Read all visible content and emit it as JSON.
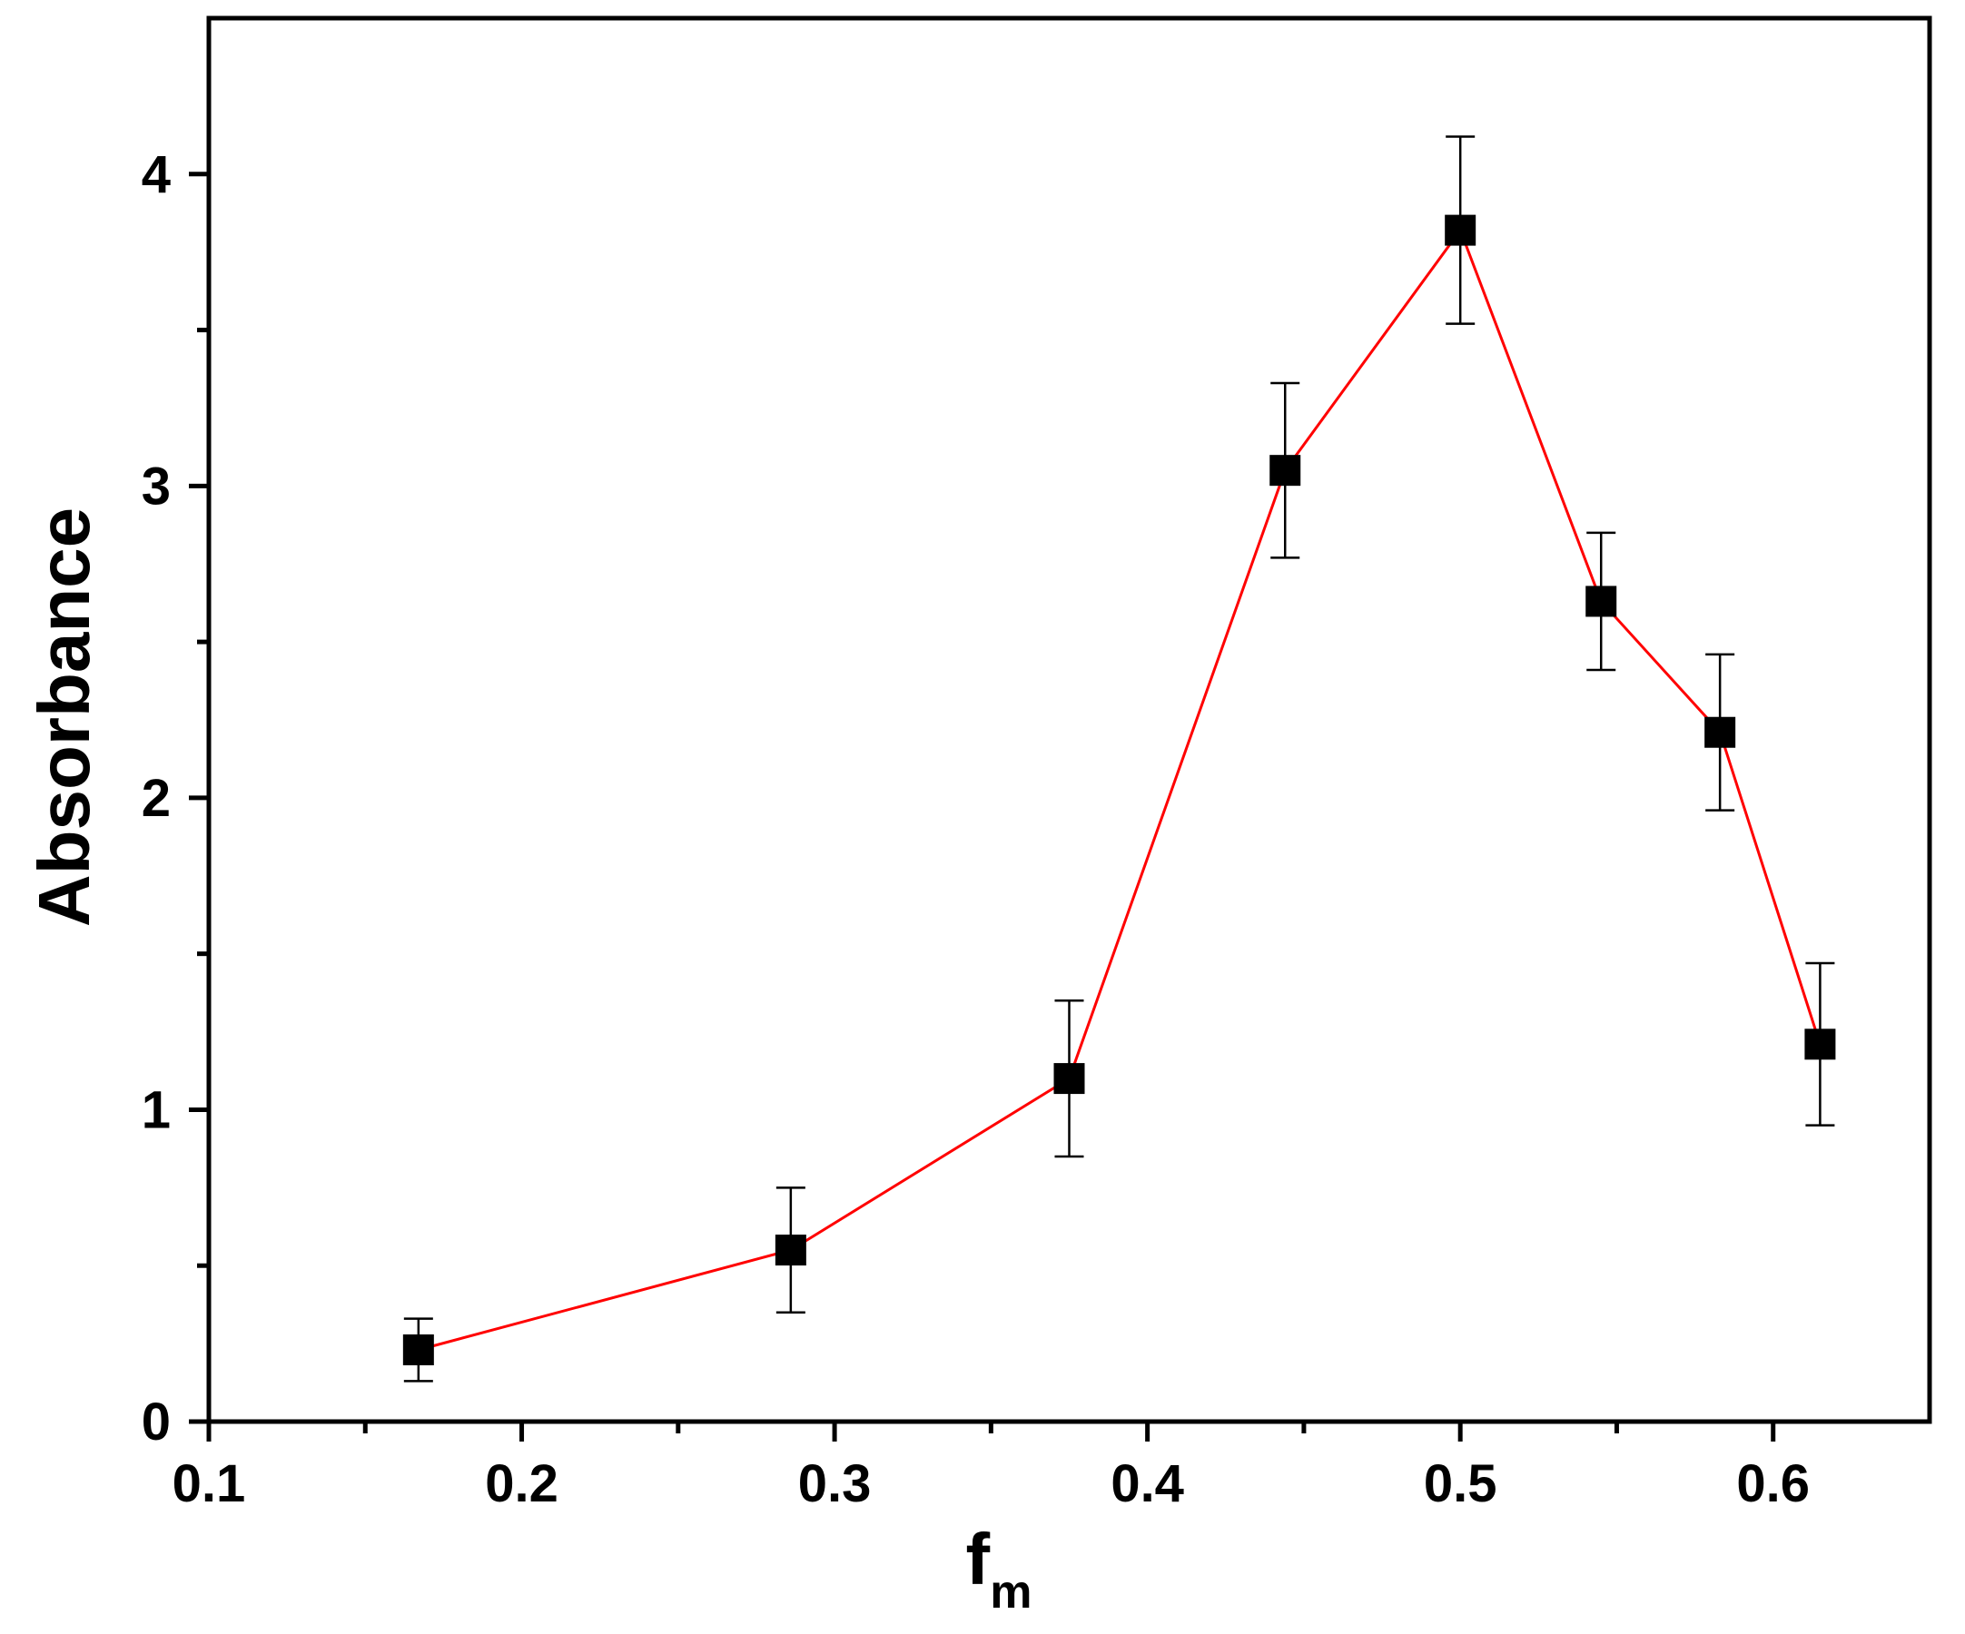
{
  "chart_data": {
    "type": "scatter",
    "xlabel": "f",
    "xlabel_subscript": "m",
    "ylabel": "Absorbance",
    "xlim": [
      0.1,
      0.65
    ],
    "ylim": [
      0,
      4.5
    ],
    "x_ticks": [
      "0.1",
      "0.2",
      "0.3",
      "0.4",
      "0.5",
      "0.6"
    ],
    "x_tick_values": [
      0.1,
      0.2,
      0.3,
      0.4,
      0.5,
      0.6
    ],
    "x_minor_ticks": [
      0.15,
      0.25,
      0.35,
      0.45,
      0.55
    ],
    "y_ticks": [
      "0",
      "1",
      "2",
      "3",
      "4"
    ],
    "y_tick_values": [
      0,
      1,
      2,
      3,
      4
    ],
    "y_minor_ticks": [
      0.5,
      1.5,
      2.5,
      3.5
    ],
    "grid": false,
    "legend": "none",
    "line_color": "#ff0000",
    "marker_color": "#000000",
    "marker": "square",
    "series": [
      {
        "x": [
          0.167,
          0.286,
          0.375,
          0.444,
          0.5,
          0.545,
          0.583,
          0.615
        ],
        "y": [
          0.23,
          0.55,
          1.1,
          3.05,
          3.82,
          2.63,
          2.21,
          1.21
        ],
        "error": [
          0.1,
          0.2,
          0.25,
          0.28,
          0.3,
          0.22,
          0.25,
          0.26
        ]
      }
    ]
  }
}
